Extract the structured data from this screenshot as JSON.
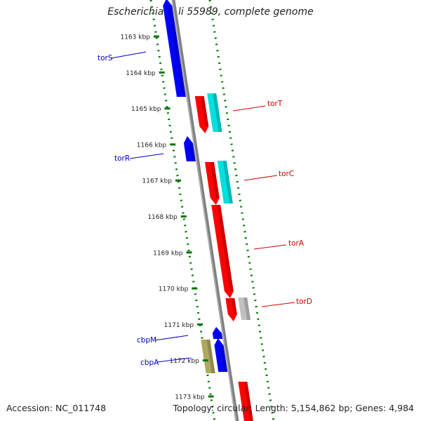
{
  "title": "Escherichia coli 55989, complete genome",
  "accession": "Accession: NC_011748",
  "summary": "Topology: circular; Length: 5,154,862 bp; Genes: 4,984",
  "ticks": [
    "1163 kbp",
    "1164 kbp",
    "1165 kbp",
    "1166 kbp",
    "1167 kbp",
    "1168 kbp",
    "1169 kbp",
    "1170 kbp",
    "1171 kbp",
    "1172 kbp",
    "1173 kbp"
  ],
  "gene_labels": [
    {
      "id": "torS",
      "text": "torS",
      "strand": "minus",
      "color": "#0000c8"
    },
    {
      "id": "torR",
      "text": "torR",
      "strand": "minus",
      "color": "#0000c8"
    },
    {
      "id": "torT",
      "text": "torT",
      "strand": "plus",
      "color": "#cc0000"
    },
    {
      "id": "torC",
      "text": "torC",
      "strand": "plus",
      "color": "#cc0000"
    },
    {
      "id": "torA",
      "text": "torA",
      "strand": "plus",
      "color": "#cc0000"
    },
    {
      "id": "torD",
      "text": "torD",
      "strand": "plus",
      "color": "#cc0000"
    },
    {
      "id": "cbpM",
      "text": "cbpM",
      "strand": "minus",
      "color": "#0000c8"
    },
    {
      "id": "cbpA",
      "text": "cbpA",
      "strand": "minus",
      "color": "#0000c8"
    }
  ],
  "colors": {
    "minus_strand_gene": "#0000ff",
    "plus_strand_gene": "#ff0000",
    "category_cyan": "#00e0e0",
    "category_grey": "#c0c0c0",
    "category_olive": "#b0a860",
    "backbone": "#808080",
    "guide_dots": "#007700"
  }
}
